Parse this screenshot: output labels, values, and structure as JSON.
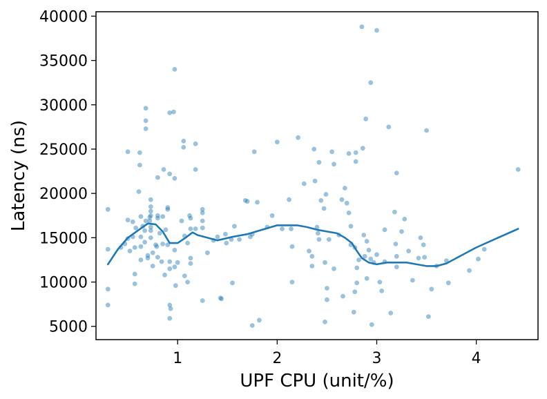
{
  "chart_data": {
    "type": "scatter",
    "title": "",
    "xlabel": "UPF CPU (unit/%)",
    "ylabel": "Latency (ns)",
    "xlim": [
      0.18,
      4.62
    ],
    "ylim": [
      3500,
      40500
    ],
    "xticks": [
      1,
      2,
      3,
      4
    ],
    "yticks": [
      5000,
      10000,
      15000,
      20000,
      25000,
      30000,
      35000,
      40000
    ],
    "grid": false,
    "legend": "none",
    "colors": {
      "points": "#1f77b4",
      "trend": "#1f77b4"
    },
    "series": [
      {
        "kind": "scatter",
        "points": [
          [
            0.3,
            18200
          ],
          [
            0.3,
            13700
          ],
          [
            0.3,
            9200
          ],
          [
            0.3,
            7400
          ],
          [
            0.43,
            13900
          ],
          [
            0.47,
            14300
          ],
          [
            0.5,
            24700
          ],
          [
            0.5,
            17000
          ],
          [
            0.5,
            14900
          ],
          [
            0.52,
            13500
          ],
          [
            0.55,
            16800
          ],
          [
            0.55,
            15100
          ],
          [
            0.57,
            13900
          ],
          [
            0.57,
            10900
          ],
          [
            0.57,
            9800
          ],
          [
            0.58,
            16100
          ],
          [
            0.61,
            20200
          ],
          [
            0.62,
            23200
          ],
          [
            0.62,
            24600
          ],
          [
            0.63,
            17400
          ],
          [
            0.63,
            15100
          ],
          [
            0.63,
            14000
          ],
          [
            0.63,
            12500
          ],
          [
            0.65,
            16300
          ],
          [
            0.67,
            15800
          ],
          [
            0.67,
            14500
          ],
          [
            0.68,
            29600
          ],
          [
            0.68,
            28200
          ],
          [
            0.68,
            27300
          ],
          [
            0.68,
            16900
          ],
          [
            0.7,
            13000
          ],
          [
            0.7,
            12700
          ],
          [
            0.72,
            17300
          ],
          [
            0.72,
            16900
          ],
          [
            0.73,
            19300
          ],
          [
            0.73,
            18500
          ],
          [
            0.73,
            18000
          ],
          [
            0.73,
            17500
          ],
          [
            0.73,
            16200
          ],
          [
            0.73,
            15800
          ],
          [
            0.73,
            15000
          ],
          [
            0.75,
            13300
          ],
          [
            0.75,
            11800
          ],
          [
            0.78,
            14200
          ],
          [
            0.79,
            14000
          ],
          [
            0.8,
            21800
          ],
          [
            0.8,
            17500
          ],
          [
            0.8,
            17200
          ],
          [
            0.8,
            12800
          ],
          [
            0.82,
            15500
          ],
          [
            0.84,
            12300
          ],
          [
            0.85,
            17400
          ],
          [
            0.85,
            14300
          ],
          [
            0.86,
            22700
          ],
          [
            0.87,
            10800
          ],
          [
            0.88,
            15900
          ],
          [
            0.9,
            18400
          ],
          [
            0.9,
            18200
          ],
          [
            0.9,
            14200
          ],
          [
            0.92,
            29100
          ],
          [
            0.92,
            22200
          ],
          [
            0.92,
            12300
          ],
          [
            0.92,
            11500
          ],
          [
            0.92,
            7400
          ],
          [
            0.92,
            5900
          ],
          [
            0.93,
            7000
          ],
          [
            0.96,
            29200
          ],
          [
            0.97,
            34000
          ],
          [
            0.97,
            21700
          ],
          [
            0.97,
            13600
          ],
          [
            0.97,
            11700
          ],
          [
            0.98,
            9600
          ],
          [
            1.0,
            12200
          ],
          [
            1.04,
            16900
          ],
          [
            1.06,
            25900
          ],
          [
            1.06,
            25200
          ],
          [
            1.07,
            15200
          ],
          [
            1.07,
            10700
          ],
          [
            1.1,
            14400
          ],
          [
            1.1,
            10000
          ],
          [
            1.12,
            17500
          ],
          [
            1.13,
            17200
          ],
          [
            1.13,
            16000
          ],
          [
            1.13,
            12700
          ],
          [
            1.13,
            12100
          ],
          [
            1.18,
            25600
          ],
          [
            1.18,
            22700
          ],
          [
            1.18,
            16000
          ],
          [
            1.25,
            18200
          ],
          [
            1.25,
            17800
          ],
          [
            1.25,
            16900
          ],
          [
            1.25,
            16100
          ],
          [
            1.25,
            7900
          ],
          [
            1.3,
            13300
          ],
          [
            1.36,
            14700
          ],
          [
            1.4,
            15100
          ],
          [
            1.43,
            8200
          ],
          [
            1.44,
            8100
          ],
          [
            1.48,
            15400
          ],
          [
            1.49,
            14400
          ],
          [
            1.54,
            14800
          ],
          [
            1.55,
            9900
          ],
          [
            1.57,
            16300
          ],
          [
            1.62,
            14800
          ],
          [
            1.68,
            19200
          ],
          [
            1.7,
            19100
          ],
          [
            1.73,
            15100
          ],
          [
            1.75,
            5100
          ],
          [
            1.75,
            15400
          ],
          [
            1.77,
            24700
          ],
          [
            1.8,
            19000
          ],
          [
            1.82,
            5700
          ],
          [
            1.9,
            16200
          ],
          [
            1.95,
            17500
          ],
          [
            2.0,
            25800
          ],
          [
            2.05,
            16000
          ],
          [
            2.12,
            19300
          ],
          [
            2.14,
            16000
          ],
          [
            2.15,
            10000
          ],
          [
            2.15,
            14000
          ],
          [
            2.21,
            26300
          ],
          [
            2.27,
            21100
          ],
          [
            2.32,
            13500
          ],
          [
            2.35,
            11800
          ],
          [
            2.35,
            12900
          ],
          [
            2.37,
            25000
          ],
          [
            2.38,
            21400
          ],
          [
            2.4,
            16200
          ],
          [
            2.41,
            15500
          ],
          [
            2.42,
            14800
          ],
          [
            2.42,
            23500
          ],
          [
            2.44,
            19200
          ],
          [
            2.47,
            18300
          ],
          [
            2.48,
            5500
          ],
          [
            2.48,
            12200
          ],
          [
            2.49,
            19900
          ],
          [
            2.5,
            9300
          ],
          [
            2.5,
            8000
          ],
          [
            2.52,
            14800
          ],
          [
            2.55,
            24700
          ],
          [
            2.57,
            11500
          ],
          [
            2.57,
            23300
          ],
          [
            2.62,
            15300
          ],
          [
            2.65,
            19300
          ],
          [
            2.66,
            8400
          ],
          [
            2.68,
            20600
          ],
          [
            2.7,
            18900
          ],
          [
            2.72,
            17800
          ],
          [
            2.72,
            24500
          ],
          [
            2.74,
            14200
          ],
          [
            2.74,
            16300
          ],
          [
            2.77,
            6600
          ],
          [
            2.78,
            13900
          ],
          [
            2.78,
            8900
          ],
          [
            2.79,
            23600
          ],
          [
            2.79,
            24600
          ],
          [
            2.8,
            11600
          ],
          [
            2.8,
            9900
          ],
          [
            2.82,
            12500
          ],
          [
            2.85,
            38800
          ],
          [
            2.86,
            25100
          ],
          [
            2.87,
            15300
          ],
          [
            2.88,
            12900
          ],
          [
            2.89,
            28400
          ],
          [
            2.9,
            14600
          ],
          [
            2.9,
            10400
          ],
          [
            2.92,
            13600
          ],
          [
            2.94,
            32500
          ],
          [
            2.94,
            12600
          ],
          [
            2.95,
            5200
          ],
          [
            2.97,
            12200
          ],
          [
            3.0,
            38400
          ],
          [
            3.0,
            13100
          ],
          [
            3.03,
            10000
          ],
          [
            3.05,
            9000
          ],
          [
            3.08,
            15900
          ],
          [
            3.08,
            12300
          ],
          [
            3.12,
            27500
          ],
          [
            3.14,
            6500
          ],
          [
            3.18,
            17900
          ],
          [
            3.19,
            14300
          ],
          [
            3.2,
            12900
          ],
          [
            3.2,
            22300
          ],
          [
            3.2,
            11700
          ],
          [
            3.25,
            15700
          ],
          [
            3.28,
            17100
          ],
          [
            3.32,
            13500
          ],
          [
            3.36,
            10200
          ],
          [
            3.42,
            12700
          ],
          [
            3.44,
            15000
          ],
          [
            3.47,
            14200
          ],
          [
            3.48,
            12800
          ],
          [
            3.5,
            27100
          ],
          [
            3.52,
            6100
          ],
          [
            3.55,
            9200
          ],
          [
            3.6,
            11800
          ],
          [
            3.7,
            12400
          ],
          [
            3.72,
            9900
          ],
          [
            3.93,
            11300
          ],
          [
            4.02,
            12600
          ],
          [
            4.08,
            13700
          ],
          [
            4.42,
            22700
          ]
        ]
      },
      {
        "kind": "line",
        "x": [
          0.3,
          0.4,
          0.5,
          0.6,
          0.7,
          0.78,
          0.85,
          0.92,
          1.0,
          1.08,
          1.15,
          1.2,
          1.3,
          1.4,
          1.55,
          1.7,
          1.85,
          2.0,
          2.1,
          2.2,
          2.3,
          2.4,
          2.5,
          2.6,
          2.68,
          2.75,
          2.8,
          2.85,
          2.92,
          3.0,
          3.1,
          3.2,
          3.3,
          3.4,
          3.5,
          3.6,
          3.7,
          3.85,
          4.0,
          4.2,
          4.42
        ],
        "y": [
          12000,
          13700,
          15000,
          15800,
          16600,
          16500,
          15700,
          14400,
          14400,
          15000,
          15600,
          15300,
          15000,
          14700,
          15100,
          15400,
          15900,
          16400,
          16400,
          16400,
          16200,
          15900,
          15700,
          15500,
          15000,
          14400,
          13500,
          12700,
          12200,
          12000,
          12200,
          12200,
          12200,
          12000,
          11800,
          11800,
          12100,
          13000,
          13900,
          14900,
          16000
        ]
      }
    ]
  }
}
